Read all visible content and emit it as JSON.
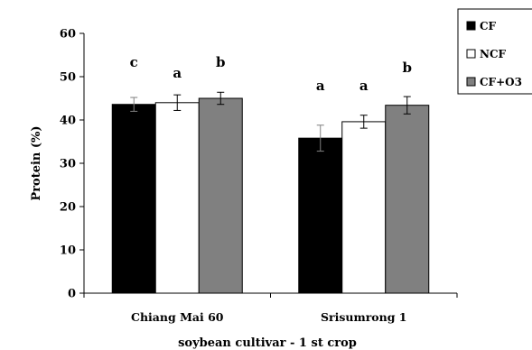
{
  "chart_data": {
    "type": "bar",
    "title": "",
    "xlabel": "soybean cultivar - 1 st crop",
    "ylabel": "Protein (%)",
    "ylim": [
      0,
      60
    ],
    "yticks": [
      0,
      10,
      20,
      30,
      40,
      50,
      60
    ],
    "categories": [
      "Chiang Mai 60",
      "Srisumrong 1"
    ],
    "series": [
      {
        "name": "CF",
        "color": "#000000",
        "values": [
          43.6,
          35.8
        ],
        "errors": [
          1.6,
          3.0
        ],
        "letters": [
          "c",
          "a"
        ]
      },
      {
        "name": "NCF",
        "color": "#ffffff",
        "values": [
          44.0,
          39.6
        ],
        "errors": [
          1.8,
          1.5
        ],
        "letters": [
          "a",
          "a"
        ]
      },
      {
        "name": "CF+O3",
        "color": "#808080",
        "values": [
          45.0,
          43.4
        ],
        "errors": [
          1.4,
          2.0
        ],
        "letters": [
          "b",
          "b"
        ]
      }
    ],
    "legend_position": "top-right",
    "grid": false,
    "error_bars": true
  }
}
